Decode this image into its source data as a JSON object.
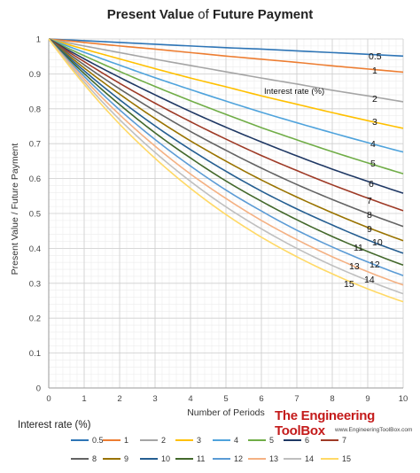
{
  "chart_data": {
    "type": "line",
    "title": "Present Value of Future Payment",
    "title_part1": "Present Value",
    "title_part2": "of",
    "title_part3": "Future Payment",
    "xlabel": "Number of Periods",
    "ylabel": "Present Value  / Future Payment",
    "xlim": [
      0,
      10
    ],
    "ylim": [
      0,
      1
    ],
    "x_ticks": [
      "0",
      "1",
      "2",
      "3",
      "4",
      "5",
      "6",
      "7",
      "8",
      "9",
      "10"
    ],
    "y_ticks": [
      "0",
      "0.1",
      "0.2",
      "0.3",
      "0.4",
      "0.5",
      "0.6",
      "0.7",
      "0.8",
      "0.9",
      "1"
    ],
    "grid": true,
    "annotation": "Interest rate (%)",
    "legend_title": "Interest rate (%)",
    "legend_placement": "bottom",
    "x": [
      0,
      1,
      2,
      3,
      4,
      5,
      6,
      7,
      8,
      9,
      10
    ],
    "series": [
      {
        "name": "0.5",
        "label": "0.5",
        "color": "#2e75b6",
        "values": [
          1,
          0.995,
          0.99,
          0.985,
          0.98,
          0.975,
          0.971,
          0.966,
          0.961,
          0.956,
          0.951
        ]
      },
      {
        "name": "1",
        "label": "1",
        "color": "#ed7d31",
        "values": [
          1,
          0.99,
          0.98,
          0.971,
          0.961,
          0.951,
          0.942,
          0.933,
          0.923,
          0.914,
          0.905
        ]
      },
      {
        "name": "2",
        "label": "2",
        "color": "#a5a5a5",
        "values": [
          1,
          0.98,
          0.961,
          0.942,
          0.924,
          0.906,
          0.888,
          0.871,
          0.853,
          0.837,
          0.82
        ]
      },
      {
        "name": "3",
        "label": "3",
        "color": "#ffc000",
        "values": [
          1,
          0.971,
          0.943,
          0.915,
          0.888,
          0.863,
          0.837,
          0.813,
          0.789,
          0.766,
          0.744
        ]
      },
      {
        "name": "4",
        "label": "4",
        "color": "#4fa3dc",
        "values": [
          1,
          0.962,
          0.925,
          0.889,
          0.855,
          0.822,
          0.79,
          0.76,
          0.731,
          0.703,
          0.676
        ]
      },
      {
        "name": "5",
        "label": "5",
        "color": "#70ad47",
        "values": [
          1,
          0.952,
          0.907,
          0.864,
          0.823,
          0.784,
          0.746,
          0.711,
          0.677,
          0.645,
          0.614
        ]
      },
      {
        "name": "6",
        "label": "6",
        "color": "#1f3864",
        "values": [
          1,
          0.943,
          0.89,
          0.84,
          0.792,
          0.747,
          0.705,
          0.665,
          0.627,
          0.592,
          0.558
        ]
      },
      {
        "name": "7",
        "label": "7",
        "color": "#9e3a26",
        "values": [
          1,
          0.935,
          0.873,
          0.816,
          0.763,
          0.713,
          0.666,
          0.623,
          0.582,
          0.544,
          0.508
        ]
      },
      {
        "name": "8",
        "label": "8",
        "color": "#636363",
        "values": [
          1,
          0.926,
          0.857,
          0.794,
          0.735,
          0.681,
          0.63,
          0.583,
          0.54,
          0.5,
          0.463
        ]
      },
      {
        "name": "9",
        "label": "9",
        "color": "#997300",
        "values": [
          1,
          0.917,
          0.842,
          0.772,
          0.708,
          0.65,
          0.596,
          0.547,
          0.502,
          0.46,
          0.422
        ]
      },
      {
        "name": "10",
        "label": "10",
        "color": "#255e91",
        "values": [
          1,
          0.909,
          0.826,
          0.751,
          0.683,
          0.621,
          0.564,
          0.513,
          0.467,
          0.424,
          0.386
        ]
      },
      {
        "name": "11",
        "label": "11",
        "color": "#43682b",
        "values": [
          1,
          0.901,
          0.812,
          0.731,
          0.659,
          0.593,
          0.535,
          0.482,
          0.434,
          0.391,
          0.352
        ]
      },
      {
        "name": "12",
        "label": "12",
        "color": "#5b9bd5",
        "values": [
          1,
          0.893,
          0.797,
          0.712,
          0.636,
          0.567,
          0.507,
          0.452,
          0.404,
          0.361,
          0.322
        ]
      },
      {
        "name": "13",
        "label": "13",
        "color": "#f4b183",
        "values": [
          1,
          0.885,
          0.783,
          0.693,
          0.613,
          0.543,
          0.48,
          0.425,
          0.376,
          0.333,
          0.295
        ]
      },
      {
        "name": "14",
        "label": "14",
        "color": "#bfbfbf",
        "values": [
          1,
          0.877,
          0.769,
          0.675,
          0.592,
          0.519,
          0.456,
          0.4,
          0.351,
          0.308,
          0.27
        ]
      },
      {
        "name": "15",
        "label": "15",
        "color": "#ffd966",
        "values": [
          1,
          0.87,
          0.756,
          0.658,
          0.572,
          0.497,
          0.432,
          0.376,
          0.327,
          0.284,
          0.247
        ]
      }
    ]
  },
  "brand": {
    "name": "The Engineering ToolBox",
    "url": "www.EngineeringToolBox.com"
  }
}
